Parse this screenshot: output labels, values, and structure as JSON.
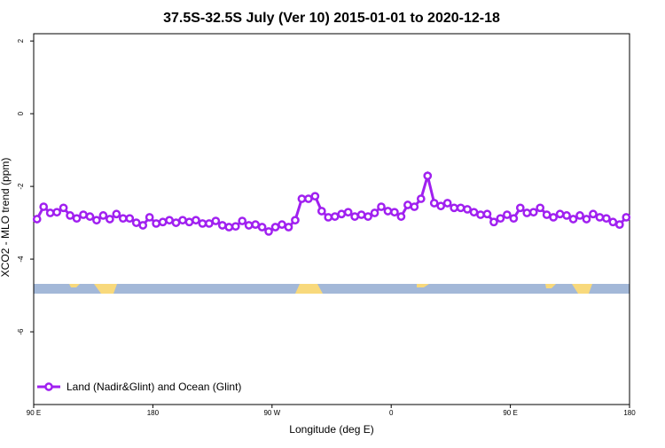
{
  "chart_data": {
    "type": "line",
    "title": "37.5S-32.5S July (Ver 10)   2015-01-01 to 2020-12-18",
    "x_label": "Longitude (deg E)",
    "y_label": "XCO2 - MLO trend (ppm)",
    "legend": "bottom-left",
    "xlim": [
      90,
      540
    ],
    "ylim": [
      -8,
      2.2
    ],
    "xticks": [
      {
        "value": 90,
        "label": "90 E"
      },
      180,
      {
        "value": 270,
        "label": "90 W"
      },
      {
        "value": 360,
        "label": "0"
      },
      {
        "value": 450,
        "label": "90 E"
      },
      {
        "value": 540,
        "label": "180"
      }
    ],
    "yticks": [
      2,
      0,
      -2,
      -4,
      -6
    ],
    "x": [
      92.5,
      97.5,
      102.5,
      107.5,
      112.5,
      117.5,
      122.5,
      127.5,
      132.5,
      137.5,
      142.5,
      147.5,
      152.5,
      157.5,
      162.5,
      167.5,
      172.5,
      177.5,
      182.5,
      187.5,
      192.5,
      197.5,
      202.5,
      207.5,
      212.5,
      217.5,
      222.5,
      227.5,
      232.5,
      237.5,
      242.5,
      247.5,
      252.5,
      257.5,
      262.5,
      267.5,
      272.5,
      277.5,
      282.5,
      287.5,
      292.5,
      297.5,
      302.5,
      307.5,
      312.5,
      317.5,
      322.5,
      327.5,
      332.5,
      337.5,
      342.5,
      347.5,
      352.5,
      357.5,
      362.5,
      367.5,
      372.5,
      377.5,
      382.5,
      387.5,
      392.5,
      397.5,
      402.5,
      407.5,
      412.5,
      417.5,
      422.5,
      427.5,
      432.5,
      437.5,
      442.5,
      447.5,
      452.5,
      457.5,
      462.5,
      467.5,
      472.5,
      477.5,
      482.5,
      487.5,
      492.5,
      497.5,
      502.5,
      507.5,
      512.5,
      517.5,
      522.5,
      527.5,
      532.5,
      537.5
    ],
    "series": [
      {
        "name": "Land (Nadir&Glint) and Ocean (Glint)",
        "color": "#a020f0",
        "values": [
          -2.9,
          -2.56,
          -2.73,
          -2.71,
          -2.59,
          -2.8,
          -2.88,
          -2.78,
          -2.83,
          -2.93,
          -2.8,
          -2.9,
          -2.76,
          -2.88,
          -2.88,
          -3.0,
          -3.07,
          -2.85,
          -3.02,
          -2.98,
          -2.93,
          -3.0,
          -2.93,
          -2.98,
          -2.93,
          -3.02,
          -3.02,
          -2.95,
          -3.07,
          -3.12,
          -3.1,
          -2.95,
          -3.07,
          -3.05,
          -3.12,
          -3.24,
          -3.12,
          -3.05,
          -3.12,
          -2.93,
          -2.34,
          -2.34,
          -2.27,
          -2.68,
          -2.85,
          -2.83,
          -2.76,
          -2.71,
          -2.83,
          -2.78,
          -2.83,
          -2.73,
          -2.56,
          -2.68,
          -2.71,
          -2.83,
          -2.51,
          -2.56,
          -2.34,
          -1.71,
          -2.46,
          -2.54,
          -2.46,
          -2.59,
          -2.59,
          -2.63,
          -2.71,
          -2.78,
          -2.76,
          -2.98,
          -2.88,
          -2.78,
          -2.88,
          -2.59,
          -2.73,
          -2.71,
          -2.59,
          -2.78,
          -2.85,
          -2.76,
          -2.8,
          -2.9,
          -2.8,
          -2.9,
          -2.76,
          -2.85,
          -2.88,
          -2.98,
          -3.05,
          -2.85
        ]
      }
    ]
  }
}
